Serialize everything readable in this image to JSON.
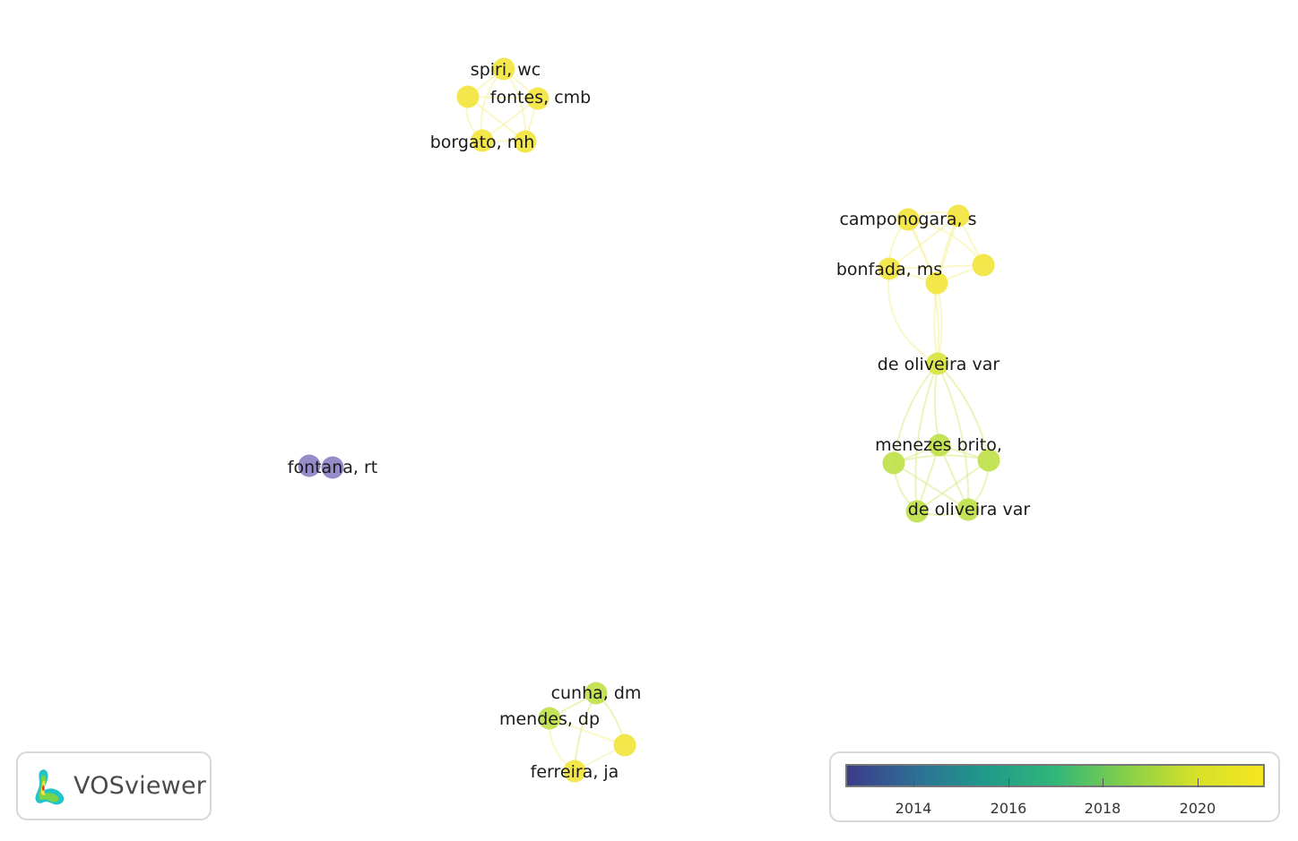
{
  "app": {
    "logo_text": "VOSviewer"
  },
  "colors": {
    "purple": "#8a80c4",
    "yellow": "#f2e43a",
    "yellow_green": "#d7e33e",
    "lime": "#bfe046",
    "edge_yellow": "#f5f09a",
    "edge_green": "#dbeb8a"
  },
  "network": {
    "labels": [
      "spiri, wc",
      "fontes, cmb",
      "borgato, mh",
      "camponogara, s",
      "bonfada, ms",
      "de oliveira var",
      "menezes brito,",
      "de oliveira var",
      "fontana, rt",
      "cunha, dm",
      "mendes, dp",
      "ferreira, ja"
    ]
  },
  "legend": {
    "gradient_colors": [
      "#3b3b8a",
      "#2e6f95",
      "#1f9a8a",
      "#31b67a",
      "#83cf4a",
      "#d5e12a",
      "#f5e61f"
    ],
    "tick_labels": [
      "2014",
      "2016",
      "2018",
      "2020"
    ]
  }
}
